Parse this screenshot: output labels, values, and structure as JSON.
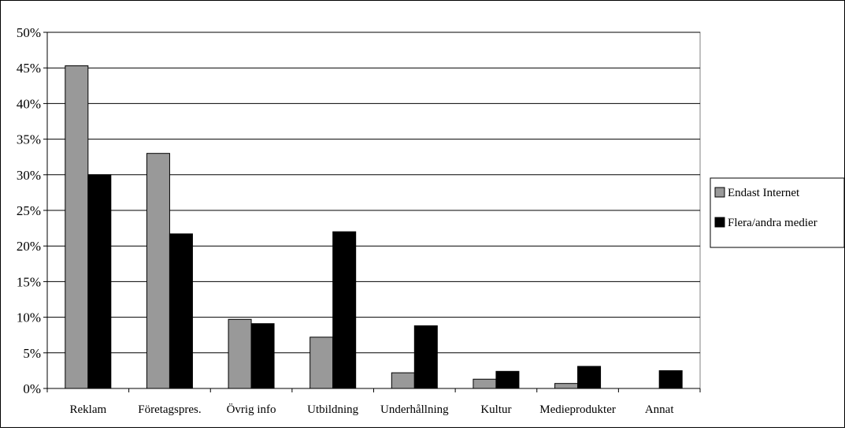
{
  "chart_data": {
    "type": "bar",
    "categories": [
      "Reklam",
      "Företagspres.",
      "Övrig info",
      "Utbildning",
      "Underhållning",
      "Kultur",
      "Medieprodukter",
      "Annat"
    ],
    "series": [
      {
        "name": "Endast Internet",
        "color": "#999999",
        "values": [
          45.3,
          33.0,
          9.7,
          7.2,
          2.2,
          1.3,
          0.7,
          0.0
        ]
      },
      {
        "name": "Flera/andra medier",
        "color": "#000000",
        "values": [
          30.0,
          21.7,
          9.1,
          22.0,
          8.8,
          2.4,
          3.1,
          2.5
        ]
      }
    ],
    "yticks": [
      "0%",
      "5%",
      "10%",
      "15%",
      "20%",
      "25%",
      "30%",
      "35%",
      "40%",
      "45%",
      "50%"
    ],
    "ylim": [
      0,
      50
    ],
    "grid": true,
    "legend_position": "right",
    "title": "",
    "xlabel": "",
    "ylabel": ""
  }
}
